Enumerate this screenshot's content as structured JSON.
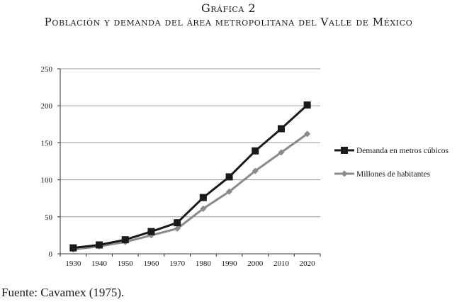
{
  "header": {
    "label": "Gráfica 2",
    "title": "Población y demanda del área metropolitana del Valle de México"
  },
  "source": "Fuente: Cavamex (1975).",
  "chart_data": {
    "type": "line",
    "x": [
      "1930",
      "1940",
      "1950",
      "1960",
      "1970",
      "1980",
      "1990",
      "2000",
      "2010",
      "2020"
    ],
    "series": [
      {
        "name": "Demanda en metros cúbicos",
        "color": "#1a1a1a",
        "marker": "square",
        "values": [
          8,
          12,
          19,
          30,
          42,
          76,
          104,
          139,
          169,
          201
        ]
      },
      {
        "name": "Millones de habitantes",
        "color": "#8a8a8a",
        "marker": "diamond",
        "values": [
          6,
          10,
          16,
          25,
          34,
          61,
          84,
          112,
          137,
          162
        ]
      }
    ],
    "ylim": [
      0,
      250
    ],
    "yticks": [
      0,
      50,
      100,
      150,
      200,
      250
    ],
    "grid": true,
    "legend": "right"
  }
}
